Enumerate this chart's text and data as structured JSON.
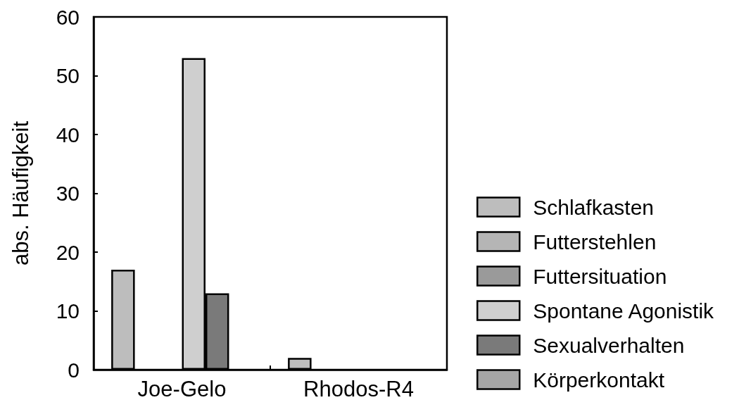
{
  "chart_data": {
    "type": "bar",
    "categories": [
      "Joe-Gelo",
      "Rhodos-R4"
    ],
    "ylabel": "abs. Häufigkeit",
    "ylim": [
      0,
      60
    ],
    "yticks": [
      0,
      10,
      20,
      30,
      40,
      50,
      60
    ],
    "legend": "right",
    "series": [
      {
        "name": "Schlafkasten",
        "color": "#bdbdbd",
        "values": [
          17,
          2
        ]
      },
      {
        "name": "Futterstehlen",
        "color": "#b5b5b5",
        "values": [
          0,
          0
        ]
      },
      {
        "name": "Futtersituation",
        "color": "#9a9a9a",
        "values": [
          0,
          0
        ]
      },
      {
        "name": "Spontane Agonistik",
        "color": "#cfcfcf",
        "values": [
          53,
          0
        ]
      },
      {
        "name": "Sexualverhalten",
        "color": "#7a7a7a",
        "values": [
          13,
          0
        ]
      },
      {
        "name": "Körperkontakt",
        "color": "#a6a6a6",
        "values": [
          0,
          0
        ]
      }
    ]
  }
}
